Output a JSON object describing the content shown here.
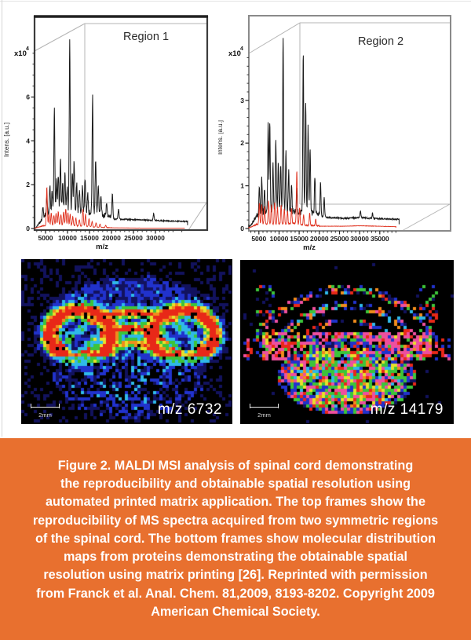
{
  "caption": {
    "bg_color": "#E8702F",
    "text_color": "#FFFFFF",
    "lines": [
      "Figure 2. MALDI MSI analysis of spinal cord demonstrating",
      "the reproducibility and obtainable spatial resolution using",
      "automated printed matrix application. The top frames show the",
      "reproducibility of MS spectra acquired from two symmetric regions",
      "of the spinal cord. The bottom frames show molecular distribution",
      "maps from proteins demonstrating the obtainable spatial",
      "resolution using matrix printing [26]. Reprinted with permission",
      "from Franck et al. Anal. Chem. 81,2009, 8193-8202. Copyright 2009",
      "American Chemical Society."
    ],
    "full_text": "Figure 2. MALDI MSI analysis of spinal cord demonstrating the reproducibility and obtainable spatial resolution using automated printed matrix application. The top frames show the reproducibility of MS spectra acquired from two symmetric regions of the spinal cord. The bottom frames show molecular distribution maps from proteins demonstrating the obtainable spatial resolution using matrix printing [26]. Reprinted with permission from Franck et al. Anal. Chem. 81,2009, 8193-8202. Copyright 2009 American Chemical Society."
  },
  "chart_data": [
    {
      "type": "line",
      "title": "Region 1",
      "xlabel": "m/z",
      "ylabel": "Intens. [a.u.]",
      "y_scale_label": "x10",
      "y_scale_exponent": "4",
      "xlim": [
        2500,
        37500
      ],
      "ylim": [
        0,
        8.1
      ],
      "xticks": [
        5000,
        10000,
        15000,
        20000,
        25000,
        30000
      ],
      "yticks": [
        0,
        2,
        4,
        6
      ],
      "series": [
        {
          "name": "black-trace",
          "color": "#1a1a1a",
          "end_mz": 37300,
          "peaks": [
            [
              4400,
              0.5
            ],
            [
              5300,
              0.9
            ],
            [
              6000,
              1.2
            ],
            [
              6500,
              1.0
            ],
            [
              7000,
              4.7
            ],
            [
              7500,
              1.4
            ],
            [
              7900,
              1.7
            ],
            [
              8400,
              2.4
            ],
            [
              8900,
              1.3
            ],
            [
              9400,
              1.7
            ],
            [
              9900,
              1.1
            ],
            [
              10500,
              7.7
            ],
            [
              11100,
              1.7
            ],
            [
              11500,
              2.3
            ],
            [
              12100,
              1.3
            ],
            [
              12700,
              0.95
            ],
            [
              13400,
              1.1
            ],
            [
              14000,
              1.6
            ],
            [
              14600,
              0.85
            ],
            [
              15700,
              5.3
            ],
            [
              16400,
              2.4
            ],
            [
              17000,
              1.35
            ],
            [
              17600,
              0.95
            ],
            [
              18900,
              0.55
            ],
            [
              20200,
              1.15
            ],
            [
              21600,
              0.45
            ],
            [
              29600,
              0.3
            ]
          ],
          "baseline": [
            [
              2800,
              0.02
            ],
            [
              4000,
              0.3
            ],
            [
              5000,
              0.5
            ],
            [
              7000,
              0.6
            ],
            [
              10000,
              0.65
            ],
            [
              14000,
              0.6
            ],
            [
              17000,
              0.55
            ],
            [
              19000,
              0.45
            ],
            [
              21000,
              0.4
            ],
            [
              24000,
              0.38
            ],
            [
              28000,
              0.36
            ],
            [
              31000,
              0.33
            ],
            [
              37300,
              0.3
            ]
          ]
        },
        {
          "name": "red-trace",
          "color": "#df2f1c",
          "end_mz": 36600,
          "peaks": [
            [
              5300,
              1.75
            ],
            [
              5800,
              0.5
            ],
            [
              6300,
              0.55
            ],
            [
              6900,
              0.45
            ],
            [
              7400,
              0.55
            ],
            [
              7900,
              0.6
            ],
            [
              8500,
              0.5
            ],
            [
              9100,
              0.6
            ],
            [
              9600,
              0.75
            ],
            [
              10100,
              0.55
            ],
            [
              10600,
              0.5
            ],
            [
              11200,
              0.4
            ],
            [
              11900,
              0.35
            ],
            [
              12700,
              0.3
            ],
            [
              13500,
              0.8
            ],
            [
              14100,
              0.55
            ],
            [
              14900,
              0.35
            ],
            [
              15600,
              0.25
            ],
            [
              16500,
              0.2
            ],
            [
              17400,
              0.15
            ],
            [
              18700,
              0.1
            ]
          ],
          "baseline": [
            [
              2800,
              0.02
            ],
            [
              4500,
              0.1
            ],
            [
              6000,
              0.12
            ],
            [
              10000,
              0.12
            ],
            [
              14000,
              0.08
            ],
            [
              16000,
              0.05
            ],
            [
              20000,
              0.03
            ],
            [
              27000,
              0.02
            ],
            [
              36600,
              0.02
            ]
          ]
        }
      ]
    },
    {
      "type": "line",
      "title": "Region 2",
      "xlabel": "m/z",
      "ylabel": "Intens. [a.u.]",
      "y_scale_label": "x10",
      "y_scale_exponent": "4",
      "xlim": [
        2500,
        40500
      ],
      "ylim": [
        0,
        4.1
      ],
      "xticks": [
        5000,
        10000,
        15000,
        20000,
        25000,
        30000,
        35000
      ],
      "yticks": [
        0,
        1,
        2,
        3
      ],
      "series": [
        {
          "name": "black-trace",
          "color": "#1a1a1a",
          "end_mz": 39800,
          "peaks": [
            [
              5100,
              0.65
            ],
            [
              5700,
              0.9
            ],
            [
              6400,
              0.55
            ],
            [
              7300,
              2.05
            ],
            [
              7700,
              2.1
            ],
            [
              8500,
              1.05
            ],
            [
              9200,
              1.6
            ],
            [
              9800,
              1.15
            ],
            [
              10400,
              1.1
            ],
            [
              11000,
              4.0
            ],
            [
              11700,
              1.4
            ],
            [
              12400,
              0.95
            ],
            [
              13100,
              0.65
            ],
            [
              14400,
              0.55
            ],
            [
              16000,
              3.8
            ],
            [
              16600,
              2.6
            ],
            [
              17200,
              2.0
            ],
            [
              17700,
              1.5
            ],
            [
              18900,
              0.9
            ],
            [
              20300,
              0.8
            ],
            [
              21200,
              0.45
            ],
            [
              30200,
              0.16
            ],
            [
              33200,
              0.12
            ]
          ],
          "baseline": [
            [
              2900,
              0.05
            ],
            [
              4500,
              0.25
            ],
            [
              6000,
              0.3
            ],
            [
              9000,
              0.35
            ],
            [
              12000,
              0.33
            ],
            [
              15000,
              0.3
            ],
            [
              18000,
              0.3
            ],
            [
              20000,
              0.28
            ],
            [
              22000,
              0.24
            ],
            [
              26000,
              0.22
            ],
            [
              30000,
              0.24
            ],
            [
              33000,
              0.22
            ],
            [
              39800,
              0.2
            ]
          ]
        },
        {
          "name": "red-trace",
          "color": "#df2f1c",
          "end_mz": 39000,
          "peaks": [
            [
              5100,
              0.5
            ],
            [
              5700,
              0.45
            ],
            [
              6400,
              0.4
            ],
            [
              7400,
              0.55
            ],
            [
              8100,
              0.45
            ],
            [
              8900,
              0.5
            ],
            [
              9600,
              0.4
            ],
            [
              10500,
              0.45
            ],
            [
              11300,
              0.35
            ],
            [
              12100,
              0.3
            ],
            [
              13100,
              0.35
            ],
            [
              14400,
              1.25
            ],
            [
              15100,
              0.4
            ],
            [
              16100,
              0.25
            ],
            [
              17600,
              0.3
            ],
            [
              19100,
              0.15
            ]
          ],
          "baseline": [
            [
              2900,
              0.02
            ],
            [
              4500,
              0.08
            ],
            [
              8000,
              0.09
            ],
            [
              12000,
              0.08
            ],
            [
              14000,
              0.1
            ],
            [
              16000,
              0.06
            ],
            [
              20000,
              0.05
            ],
            [
              26000,
              0.05
            ],
            [
              30000,
              0.06
            ],
            [
              39000,
              0.04
            ]
          ]
        }
      ]
    }
  ],
  "msi_images": [
    {
      "label": "m/z 6732",
      "scale_bar_label": "2mm",
      "background": "#000000",
      "palette": [
        "#000000",
        "#12125e",
        "#2132cc",
        "#2fb9e8",
        "#3cc43a",
        "#e6e02a",
        "#f08c1c",
        "#e82818"
      ]
    },
    {
      "label": "m/z 14179",
      "scale_bar_label": "2mm",
      "background": "#000000",
      "palette": [
        "#000000",
        "#12125e",
        "#2132cc",
        "#2fb9e8",
        "#3cc43a",
        "#e6e02a",
        "#f08c1c",
        "#e82818",
        "#ee4f9e"
      ]
    }
  ],
  "colors": {
    "frame_dark": "#3c3c3c",
    "frame_light": "#8a8a8a",
    "perspective_line": "#b4b4b4",
    "msi_text": "#FFFFFF"
  }
}
